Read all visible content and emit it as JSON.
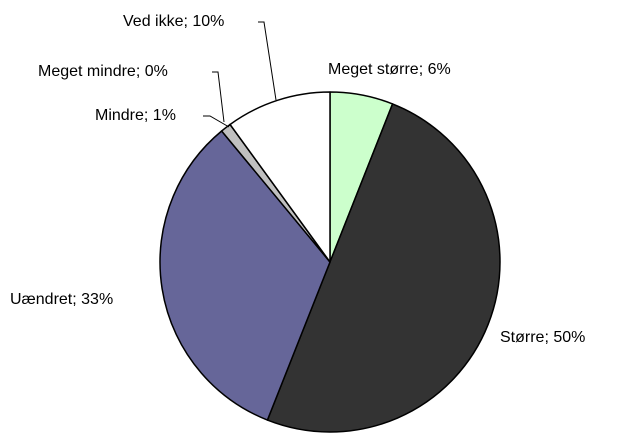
{
  "chart_data": {
    "type": "pie",
    "labels": [
      "Meget større; 6%",
      "Større; 50%",
      "Uændret; 33%",
      "Mindre; 1%",
      "Meget mindre; 0%",
      "Ved ikke; 10%"
    ],
    "values": [
      6,
      50,
      33,
      1,
      0,
      10
    ],
    "colors": [
      "#ccffcc",
      "#333333",
      "#666699",
      "#c0c0c0",
      "#000000",
      "#ffffff"
    ]
  }
}
